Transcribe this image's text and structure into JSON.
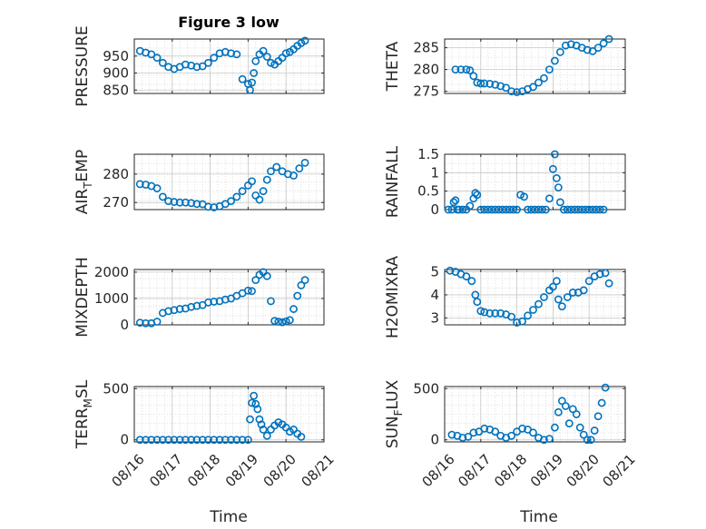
{
  "figure_title": "Figure 3 low",
  "shared_xlabel": "Time",
  "x_tick_labels": [
    "08/16",
    "08/17",
    "08/18",
    "08/19",
    "08/20",
    "08/21"
  ],
  "colors": {
    "marker": "#0072bd",
    "axes": "#262626",
    "grid": "#d9d9d9"
  },
  "chart_data": [
    {
      "type": "scatter",
      "panel": "PRESSURE",
      "ylabel": "PRESSURE",
      "xlim": [
        0,
        5
      ],
      "ylim": [
        840,
        1000
      ],
      "yticks": [
        850,
        900,
        950
      ],
      "ytick_labels": [
        "850",
        "900",
        "950"
      ],
      "x": [
        0.15,
        0.3,
        0.45,
        0.6,
        0.75,
        0.9,
        1.05,
        1.2,
        1.35,
        1.5,
        1.65,
        1.8,
        1.95,
        2.1,
        2.25,
        2.4,
        2.55,
        2.7,
        2.85,
        3.0,
        3.05,
        3.1,
        3.15,
        3.2,
        3.3,
        3.4,
        3.5,
        3.6,
        3.7,
        3.8,
        3.9,
        4.0,
        4.1,
        4.2,
        4.3,
        4.4,
        4.5
      ],
      "y": [
        965,
        960,
        955,
        945,
        930,
        918,
        912,
        918,
        925,
        922,
        918,
        920,
        930,
        945,
        958,
        962,
        958,
        955,
        882,
        868,
        850,
        872,
        900,
        935,
        955,
        965,
        948,
        930,
        925,
        935,
        945,
        958,
        962,
        970,
        980,
        988,
        995
      ]
    },
    {
      "type": "scatter",
      "panel": "THETA",
      "ylabel": "THETA",
      "xlim": [
        0,
        5
      ],
      "ylim": [
        274.5,
        287
      ],
      "yticks": [
        275,
        280,
        285
      ],
      "ytick_labels": [
        "275",
        "280",
        "285"
      ],
      "x": [
        0.3,
        0.45,
        0.6,
        0.7,
        0.8,
        0.9,
        1.0,
        1.1,
        1.25,
        1.4,
        1.55,
        1.7,
        1.85,
        2.0,
        2.15,
        2.3,
        2.45,
        2.6,
        2.75,
        2.9,
        3.05,
        3.2,
        3.35,
        3.5,
        3.65,
        3.8,
        3.95,
        4.1,
        4.25,
        4.4,
        4.55
      ],
      "y": [
        280,
        280,
        280,
        279.8,
        278.5,
        277,
        276.8,
        276.8,
        276.7,
        276.5,
        276.2,
        275.8,
        275,
        274.8,
        275,
        275.5,
        276,
        277,
        278,
        280,
        282,
        284,
        285.5,
        285.8,
        285.5,
        285,
        284.5,
        284.2,
        285,
        286,
        287
      ]
    },
    {
      "type": "scatter",
      "panel": "AIR_TEMP",
      "ylabel": "AIR_T EMP",
      "xlim": [
        0,
        5
      ],
      "ylim": [
        267.5,
        287
      ],
      "yticks": [
        270,
        280
      ],
      "ytick_labels": [
        "270",
        "280"
      ],
      "x": [
        0.15,
        0.3,
        0.45,
        0.6,
        0.75,
        0.9,
        1.05,
        1.2,
        1.35,
        1.5,
        1.65,
        1.8,
        1.95,
        2.1,
        2.25,
        2.4,
        2.55,
        2.7,
        2.85,
        3.0,
        3.1,
        3.2,
        3.3,
        3.4,
        3.5,
        3.6,
        3.75,
        3.9,
        4.05,
        4.2,
        4.35,
        4.5
      ],
      "y": [
        276.5,
        276.3,
        275.8,
        275,
        272,
        270.5,
        270.2,
        270,
        270,
        269.8,
        269.5,
        269.4,
        268.5,
        268.3,
        268.7,
        269.5,
        270.5,
        272,
        274,
        276,
        277.5,
        272.5,
        271,
        274,
        278,
        281,
        282.5,
        281,
        280,
        279.5,
        282,
        284
      ]
    },
    {
      "type": "scatter",
      "panel": "RAINFALL",
      "ylabel": "RAINFALL",
      "xlim": [
        0,
        5
      ],
      "ylim": [
        0,
        1.5
      ],
      "yticks": [
        0,
        0.5,
        1,
        1.5
      ],
      "ytick_labels": [
        "0",
        "0.5",
        "1",
        "1.5"
      ],
      "x": [
        0.1,
        0.2,
        0.25,
        0.3,
        0.35,
        0.4,
        0.5,
        0.6,
        0.7,
        0.8,
        0.85,
        0.9,
        1.0,
        1.1,
        1.2,
        1.3,
        1.4,
        1.5,
        1.6,
        1.7,
        1.8,
        1.9,
        2.0,
        2.1,
        2.2,
        2.3,
        2.4,
        2.5,
        2.6,
        2.7,
        2.8,
        2.9,
        3.0,
        3.05,
        3.1,
        3.15,
        3.2,
        3.3,
        3.4,
        3.5,
        3.6,
        3.7,
        3.8,
        3.9,
        4.0,
        4.1,
        4.2,
        4.3,
        4.4
      ],
      "y": [
        0,
        0,
        0.2,
        0.25,
        0,
        0,
        0,
        0,
        0.1,
        0.3,
        0.45,
        0.4,
        0,
        0,
        0,
        0,
        0,
        0,
        0,
        0,
        0,
        0,
        0,
        0.4,
        0.35,
        0,
        0,
        0,
        0,
        0,
        0,
        0.3,
        1.1,
        1.5,
        0.85,
        0.6,
        0.2,
        0,
        0,
        0,
        0,
        0,
        0,
        0,
        0,
        0,
        0,
        0,
        0
      ]
    },
    {
      "type": "scatter",
      "panel": "MIXDEPTH",
      "ylabel": "MIXDEPTH",
      "xlim": [
        0,
        5
      ],
      "ylim": [
        0,
        2100
      ],
      "yticks": [
        0,
        1000,
        2000
      ],
      "ytick_labels": [
        "0",
        "1000",
        "2000"
      ],
      "x": [
        0.15,
        0.3,
        0.45,
        0.6,
        0.75,
        0.9,
        1.05,
        1.2,
        1.35,
        1.5,
        1.65,
        1.8,
        1.95,
        2.1,
        2.25,
        2.4,
        2.55,
        2.7,
        2.85,
        3.0,
        3.1,
        3.2,
        3.3,
        3.4,
        3.5,
        3.6,
        3.7,
        3.8,
        3.9,
        4.0,
        4.1,
        4.2,
        4.3,
        4.4,
        4.5
      ],
      "y": [
        80,
        60,
        60,
        120,
        450,
        520,
        560,
        600,
        620,
        680,
        720,
        750,
        850,
        880,
        900,
        960,
        1000,
        1100,
        1200,
        1300,
        1280,
        1700,
        1900,
        2000,
        1850,
        900,
        150,
        120,
        100,
        130,
        180,
        600,
        1100,
        1500,
        1700
      ]
    },
    {
      "type": "scatter",
      "panel": "H2OMIXRA",
      "ylabel": "H2OMIXRA",
      "xlim": [
        0,
        5
      ],
      "ylim": [
        2.7,
        5.1
      ],
      "yticks": [
        3,
        4,
        5
      ],
      "ytick_labels": [
        "3",
        "4",
        "5"
      ],
      "x": [
        0.15,
        0.3,
        0.45,
        0.6,
        0.75,
        0.85,
        0.9,
        1.0,
        1.1,
        1.25,
        1.4,
        1.55,
        1.7,
        1.85,
        2.0,
        2.15,
        2.3,
        2.45,
        2.6,
        2.75,
        2.9,
        3.0,
        3.1,
        3.15,
        3.25,
        3.4,
        3.55,
        3.7,
        3.85,
        4.0,
        4.15,
        4.3,
        4.45,
        4.55
      ],
      "y": [
        5.05,
        5,
        4.9,
        4.8,
        4.6,
        4,
        3.7,
        3.3,
        3.25,
        3.2,
        3.2,
        3.2,
        3.15,
        3.05,
        2.8,
        2.85,
        3.1,
        3.35,
        3.6,
        3.9,
        4.2,
        4.35,
        4.6,
        3.8,
        3.5,
        3.9,
        4.1,
        4.1,
        4.2,
        4.6,
        4.8,
        4.9,
        4.95,
        4.5
      ]
    },
    {
      "type": "scatter",
      "panel": "TERR_MSL",
      "ylabel": "TERR_M SL",
      "xlim": [
        0,
        5
      ],
      "ylim": [
        -20,
        520
      ],
      "yticks": [
        0,
        500
      ],
      "ytick_labels": [
        "0",
        "500"
      ],
      "x": [
        0.15,
        0.3,
        0.45,
        0.6,
        0.75,
        0.9,
        1.05,
        1.2,
        1.35,
        1.5,
        1.65,
        1.8,
        1.95,
        2.1,
        2.25,
        2.4,
        2.55,
        2.7,
        2.85,
        3.0,
        3.05,
        3.1,
        3.15,
        3.2,
        3.25,
        3.3,
        3.35,
        3.4,
        3.5,
        3.6,
        3.7,
        3.8,
        3.9,
        4.0,
        4.1,
        4.2,
        4.3,
        4.4
      ],
      "y": [
        0,
        0,
        0,
        0,
        0,
        0,
        0,
        0,
        0,
        0,
        0,
        0,
        0,
        0,
        0,
        0,
        0,
        0,
        0,
        0,
        200,
        360,
        430,
        350,
        300,
        200,
        150,
        100,
        40,
        100,
        140,
        170,
        150,
        120,
        80,
        100,
        60,
        30
      ]
    },
    {
      "type": "scatter",
      "panel": "SUN_FLUX",
      "ylabel": "SUN_F LUX",
      "xlim": [
        0,
        5
      ],
      "ylim": [
        -20,
        520
      ],
      "yticks": [
        0,
        500
      ],
      "ytick_labels": [
        "0",
        "500"
      ],
      "x": [
        0.2,
        0.35,
        0.5,
        0.65,
        0.8,
        0.95,
        1.1,
        1.25,
        1.4,
        1.55,
        1.7,
        1.85,
        2.0,
        2.15,
        2.3,
        2.45,
        2.6,
        2.75,
        2.9,
        3.05,
        3.15,
        3.25,
        3.35,
        3.45,
        3.55,
        3.65,
        3.75,
        3.85,
        3.95,
        4.05,
        4.15,
        4.25,
        4.35,
        4.45
      ],
      "y": [
        50,
        40,
        20,
        30,
        70,
        80,
        110,
        100,
        80,
        40,
        20,
        40,
        80,
        110,
        100,
        70,
        20,
        0,
        10,
        120,
        270,
        380,
        330,
        160,
        300,
        250,
        120,
        50,
        0,
        0,
        90,
        230,
        360,
        510
      ]
    }
  ]
}
